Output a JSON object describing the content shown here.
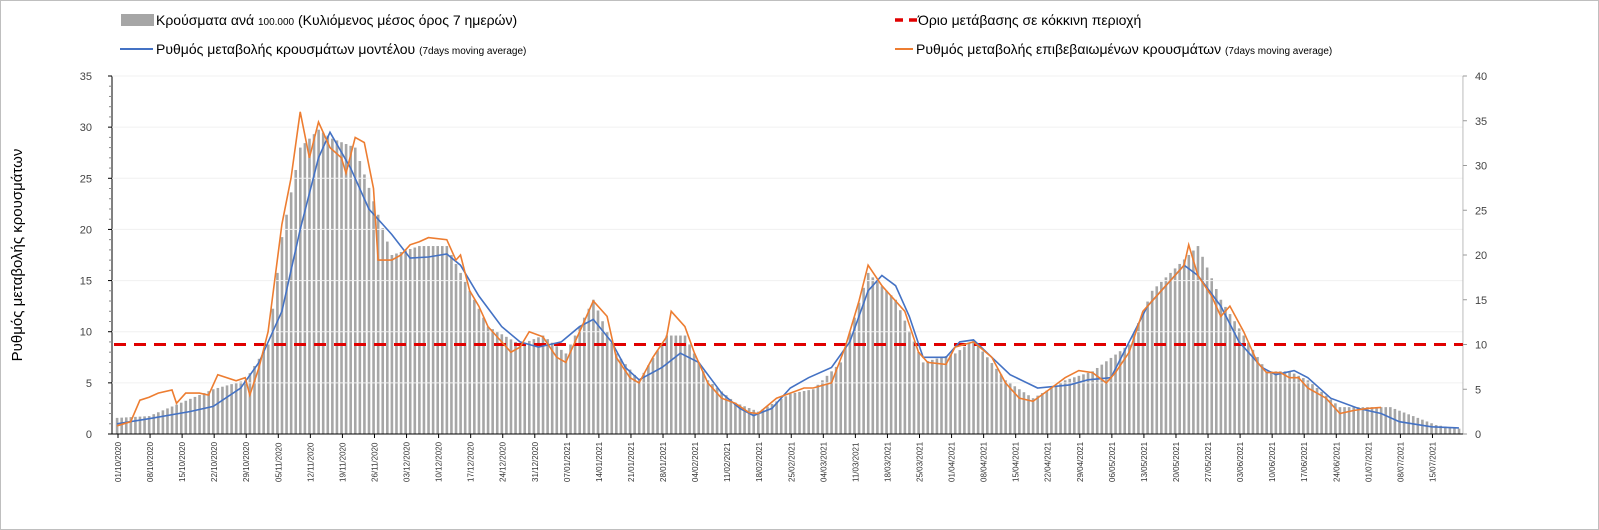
{
  "chart_data": {
    "type": "bar+line",
    "legend": {
      "bars": {
        "main": "Κρούσματα ανά",
        "small1": "100.000",
        "main2": "(Κυλιόμενος μέσος όρος 7 ημερών)"
      },
      "threshold": "Όριο μετάβασης σε κόκκινη περιοχή",
      "model": {
        "main": "Ρυθμός μεταβολής κρουσμάτων μοντέλου",
        "small": "(7days moving average)"
      },
      "confirmed": {
        "main": "Ρυθμός μεταβολής επιβεβαιωμένων κρουσμάτων",
        "small": "(7days moving average)"
      },
      "placement": "top"
    },
    "ylabel": "Ρυθμός μεταβολής κρουσμάτων",
    "ylim_left": [
      0,
      35
    ],
    "yticks_left": [
      "0",
      "5",
      "10",
      "15",
      "20",
      "25",
      "30",
      "35"
    ],
    "ylim_right": [
      0,
      40
    ],
    "yticks_right": [
      "0",
      "5",
      "10",
      "15",
      "20",
      "25",
      "30",
      "35",
      "40"
    ],
    "x_days_range": [
      0,
      293
    ],
    "xtick_labels": [
      "01/10/2020",
      "08/10/2020",
      "15/10/2020",
      "22/10/2020",
      "29/10/2020",
      "05/11/2020",
      "12/11/2020",
      "19/11/2020",
      "26/11/2020",
      "03/12/2020",
      "10/12/2020",
      "17/12/2020",
      "24/12/2020",
      "31/12/2020",
      "07/01/2021",
      "14/01/2021",
      "21/01/2021",
      "28/01/2021",
      "04/02/2021",
      "11/02/2021",
      "18/02/2021",
      "25/02/2021",
      "04/03/2021",
      "11/03/2021",
      "18/03/2021",
      "25/03/2021",
      "01/04/2021",
      "08/04/2021",
      "15/04/2021",
      "22/04/2021",
      "29/04/2021",
      "06/05/2021",
      "13/05/2021",
      "20/05/2021",
      "27/05/2021",
      "03/06/2021",
      "10/06/2021",
      "17/06/2021",
      "24/06/2021",
      "01/07/2021",
      "08/07/2021",
      "15/07/2021"
    ],
    "threshold_right_axis": 10,
    "colors": {
      "bars": "#a6a6a6",
      "model": "#4472c4",
      "confirmed": "#ed7d31",
      "threshold": "#e00000"
    },
    "series": [
      {
        "name": "bars_cases_per_100k",
        "axis": "right",
        "points": [
          [
            0,
            1.8
          ],
          [
            7,
            2
          ],
          [
            14,
            3.5
          ],
          [
            21,
            5
          ],
          [
            28,
            6
          ],
          [
            33,
            10
          ],
          [
            36,
            22
          ],
          [
            40,
            32
          ],
          [
            44,
            34
          ],
          [
            47,
            33
          ],
          [
            52,
            32
          ],
          [
            56,
            26
          ],
          [
            60,
            20
          ],
          [
            66,
            21
          ],
          [
            72,
            21
          ],
          [
            76,
            17
          ],
          [
            81,
            12
          ],
          [
            88,
            10
          ],
          [
            93,
            11
          ],
          [
            98,
            9
          ],
          [
            104,
            15
          ],
          [
            109,
            9
          ],
          [
            114,
            6
          ],
          [
            120,
            11
          ],
          [
            124,
            11
          ],
          [
            129,
            6
          ],
          [
            135,
            3.5
          ],
          [
            140,
            2.5
          ],
          [
            147,
            4.5
          ],
          [
            152,
            5
          ],
          [
            158,
            8
          ],
          [
            164,
            18
          ],
          [
            170,
            15
          ],
          [
            176,
            8
          ],
          [
            183,
            9
          ],
          [
            187,
            10.5
          ],
          [
            194,
            6
          ],
          [
            200,
            4
          ],
          [
            207,
            6
          ],
          [
            213,
            7
          ],
          [
            221,
            10
          ],
          [
            226,
            16
          ],
          [
            230,
            18
          ],
          [
            236,
            21
          ],
          [
            241,
            15
          ],
          [
            246,
            11
          ],
          [
            251,
            7
          ],
          [
            256,
            7
          ],
          [
            260,
            6
          ],
          [
            267,
            3
          ],
          [
            273,
            3
          ],
          [
            278,
            3
          ],
          [
            283,
            2
          ],
          [
            288,
            1
          ],
          [
            293,
            0.6
          ]
        ]
      },
      {
        "name": "model",
        "axis": "left",
        "points": [
          [
            0,
            1.0
          ],
          [
            7,
            1.5
          ],
          [
            16,
            2.2
          ],
          [
            21,
            2.7
          ],
          [
            27,
            4.5
          ],
          [
            31,
            7
          ],
          [
            36,
            12
          ],
          [
            40,
            20
          ],
          [
            44,
            27
          ],
          [
            46.5,
            29.5
          ],
          [
            51,
            26
          ],
          [
            55,
            22
          ],
          [
            60,
            19.5
          ],
          [
            64,
            17.2
          ],
          [
            68,
            17.3
          ],
          [
            72,
            17.6
          ],
          [
            75,
            16.5
          ],
          [
            79,
            13.5
          ],
          [
            84,
            10.5
          ],
          [
            88,
            9
          ],
          [
            92,
            8.5
          ],
          [
            97,
            9
          ],
          [
            101,
            10.5
          ],
          [
            104,
            11.2
          ],
          [
            108,
            9
          ],
          [
            111,
            6.5
          ],
          [
            114,
            5.3
          ],
          [
            119,
            6.5
          ],
          [
            123,
            7.9
          ],
          [
            127,
            7
          ],
          [
            132,
            4
          ],
          [
            136,
            2.5
          ],
          [
            139,
            1.8
          ],
          [
            143,
            2.5
          ],
          [
            147,
            4.5
          ],
          [
            151,
            5.5
          ],
          [
            156,
            6.5
          ],
          [
            160,
            9
          ],
          [
            164,
            14
          ],
          [
            167,
            15.5
          ],
          [
            170,
            14.5
          ],
          [
            173,
            11.5
          ],
          [
            176,
            7.5
          ],
          [
            181,
            7.5
          ],
          [
            184,
            9
          ],
          [
            187,
            9.2
          ],
          [
            191,
            7.5
          ],
          [
            195,
            5.8
          ],
          [
            201,
            4.5
          ],
          [
            208,
            4.8
          ],
          [
            212,
            5.3
          ],
          [
            217,
            5.5
          ],
          [
            221,
            9
          ],
          [
            225,
            12.5
          ],
          [
            230,
            15
          ],
          [
            233,
            16.5
          ],
          [
            236,
            15.5
          ],
          [
            241,
            12.5
          ],
          [
            245,
            9
          ],
          [
            250,
            6.5
          ],
          [
            253,
            5.8
          ],
          [
            257,
            6.2
          ],
          [
            260,
            5.5
          ],
          [
            265,
            3.5
          ],
          [
            271,
            2.5
          ],
          [
            276,
            2
          ],
          [
            280,
            1.2
          ],
          [
            287,
            0.7
          ],
          [
            293,
            0.6
          ]
        ]
      },
      {
        "name": "confirmed",
        "axis": "left",
        "points": [
          [
            0,
            0.8
          ],
          [
            3,
            1.2
          ],
          [
            5,
            3.3
          ],
          [
            7,
            3.6
          ],
          [
            9,
            4
          ],
          [
            12,
            4.3
          ],
          [
            13,
            3
          ],
          [
            15,
            4
          ],
          [
            18,
            4
          ],
          [
            20,
            3.8
          ],
          [
            22,
            5.8
          ],
          [
            26,
            5.2
          ],
          [
            28,
            5.5
          ],
          [
            29,
            3.8
          ],
          [
            31,
            6.5
          ],
          [
            33,
            10
          ],
          [
            36,
            20.5
          ],
          [
            38,
            25
          ],
          [
            40,
            31.5
          ],
          [
            42,
            27
          ],
          [
            44,
            30.5
          ],
          [
            46.5,
            28
          ],
          [
            49,
            27
          ],
          [
            50,
            25.5
          ],
          [
            52,
            29
          ],
          [
            54,
            28.5
          ],
          [
            56,
            24
          ],
          [
            57,
            17
          ],
          [
            60,
            17
          ],
          [
            62,
            17.5
          ],
          [
            64,
            18.5
          ],
          [
            66,
            18.8
          ],
          [
            68,
            19.2
          ],
          [
            72,
            19
          ],
          [
            74,
            17
          ],
          [
            75,
            17.5
          ],
          [
            77,
            14
          ],
          [
            79,
            12.5
          ],
          [
            81,
            10.5
          ],
          [
            84,
            9
          ],
          [
            86,
            8
          ],
          [
            88,
            8.5
          ],
          [
            90,
            10
          ],
          [
            93,
            9.5
          ],
          [
            96,
            7.5
          ],
          [
            98,
            7
          ],
          [
            100,
            9
          ],
          [
            102,
            11
          ],
          [
            104,
            13
          ],
          [
            107,
            11.5
          ],
          [
            109,
            7.5
          ],
          [
            112,
            5.5
          ],
          [
            114,
            5
          ],
          [
            117,
            7.5
          ],
          [
            120,
            9.5
          ],
          [
            121,
            12
          ],
          [
            124,
            10.5
          ],
          [
            126,
            8
          ],
          [
            129,
            5
          ],
          [
            132,
            3.5
          ],
          [
            135,
            3
          ],
          [
            138,
            2.1
          ],
          [
            140,
            2
          ],
          [
            144,
            3.5
          ],
          [
            147,
            4
          ],
          [
            150,
            4.5
          ],
          [
            152,
            4.5
          ],
          [
            156,
            5
          ],
          [
            159,
            8.5
          ],
          [
            162,
            13
          ],
          [
            164,
            16.5
          ],
          [
            167,
            14.5
          ],
          [
            169,
            13.5
          ],
          [
            172,
            12
          ],
          [
            175,
            8
          ],
          [
            177,
            7
          ],
          [
            181,
            6.8
          ],
          [
            183,
            8.5
          ],
          [
            187,
            9
          ],
          [
            191,
            7.5
          ],
          [
            194,
            5
          ],
          [
            197,
            3.5
          ],
          [
            200,
            3.2
          ],
          [
            204,
            4.5
          ],
          [
            207,
            5.5
          ],
          [
            210,
            6.2
          ],
          [
            213,
            6
          ],
          [
            216,
            5
          ],
          [
            218,
            6
          ],
          [
            221,
            8
          ],
          [
            224,
            12
          ],
          [
            228,
            14
          ],
          [
            230,
            15
          ],
          [
            233,
            16.5
          ],
          [
            234,
            18.5
          ],
          [
            236,
            15.5
          ],
          [
            239,
            13.5
          ],
          [
            241,
            11.5
          ],
          [
            243,
            12.5
          ],
          [
            246,
            10
          ],
          [
            249,
            7
          ],
          [
            251,
            6
          ],
          [
            254,
            6
          ],
          [
            256,
            5.5
          ],
          [
            258,
            5.5
          ],
          [
            260,
            4.5
          ],
          [
            264,
            3.5
          ],
          [
            267,
            2
          ],
          [
            270,
            2.3
          ],
          [
            273,
            2.5
          ],
          [
            276,
            2.6
          ]
        ]
      }
    ]
  }
}
